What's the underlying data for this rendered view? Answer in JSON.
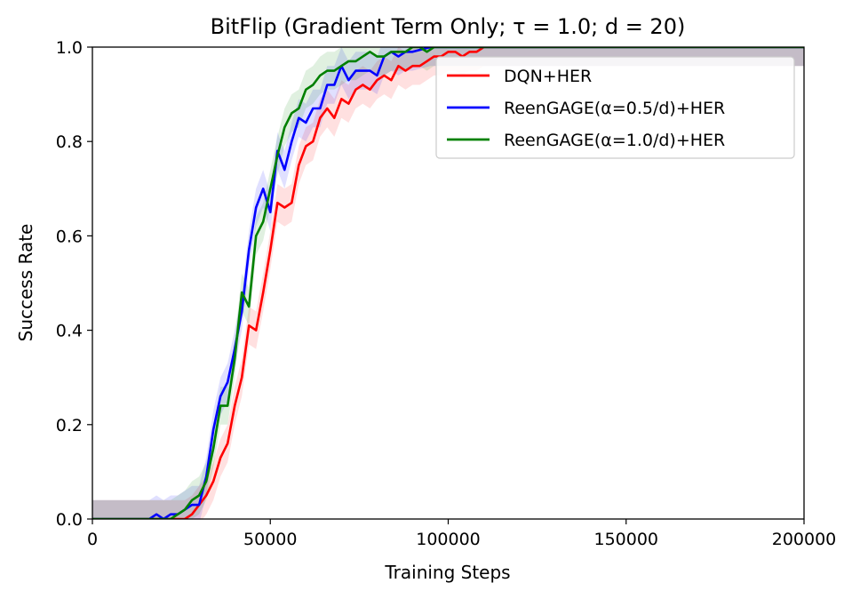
{
  "chart_data": {
    "type": "line",
    "title": "BitFlip (Gradient Term Only; τ = 1.0; d = 20)",
    "xlabel": "Training Steps",
    "ylabel": "Success Rate",
    "xlim": [
      0,
      200000
    ],
    "ylim": [
      0.0,
      1.0
    ],
    "xticks": [
      0,
      50000,
      100000,
      150000,
      200000
    ],
    "xtick_labels": [
      "0",
      "50000",
      "100000",
      "150000",
      "200000"
    ],
    "yticks": [
      0.0,
      0.2,
      0.4,
      0.6,
      0.8,
      1.0
    ],
    "ytick_labels": [
      "0.0",
      "0.2",
      "0.4",
      "0.6",
      "0.8",
      "1.0"
    ],
    "grid": false,
    "legend_position": "top-right",
    "series": [
      {
        "name": "DQN+HER",
        "color": "#ff0000",
        "band": 0.04,
        "x": [
          0,
          16000,
          20000,
          22000,
          24000,
          26000,
          28000,
          30000,
          32000,
          34000,
          36000,
          38000,
          40000,
          42000,
          44000,
          46000,
          48000,
          50000,
          52000,
          54000,
          56000,
          58000,
          60000,
          62000,
          64000,
          66000,
          68000,
          70000,
          72000,
          74000,
          76000,
          78000,
          80000,
          82000,
          84000,
          86000,
          88000,
          90000,
          92000,
          94000,
          96000,
          98000,
          100000,
          102000,
          104000,
          106000,
          108000,
          110000,
          115000,
          120000,
          130000,
          140000,
          150000,
          200000
        ],
        "y": [
          0.0,
          0.0,
          0.0,
          0.0,
          0.0,
          0.0,
          0.01,
          0.03,
          0.05,
          0.08,
          0.13,
          0.16,
          0.24,
          0.3,
          0.41,
          0.4,
          0.48,
          0.57,
          0.67,
          0.66,
          0.67,
          0.75,
          0.79,
          0.8,
          0.85,
          0.87,
          0.85,
          0.89,
          0.88,
          0.91,
          0.92,
          0.91,
          0.93,
          0.94,
          0.93,
          0.96,
          0.95,
          0.96,
          0.96,
          0.97,
          0.98,
          0.98,
          0.99,
          0.99,
          0.98,
          0.99,
          0.99,
          1.0,
          1.0,
          1.0,
          1.0,
          1.0,
          1.0,
          1.0
        ]
      },
      {
        "name": "ReenGAGE(α=0.5/d)+HER",
        "color": "#0000ff",
        "band": 0.04,
        "x": [
          0,
          16000,
          18000,
          20000,
          22000,
          24000,
          26000,
          28000,
          30000,
          32000,
          34000,
          36000,
          38000,
          40000,
          42000,
          44000,
          46000,
          48000,
          50000,
          52000,
          54000,
          56000,
          58000,
          60000,
          62000,
          64000,
          66000,
          68000,
          70000,
          72000,
          74000,
          76000,
          78000,
          80000,
          82000,
          84000,
          86000,
          88000,
          90000,
          95000,
          100000,
          110000,
          120000,
          200000
        ],
        "y": [
          0.0,
          0.0,
          0.01,
          0.0,
          0.01,
          0.01,
          0.02,
          0.03,
          0.03,
          0.09,
          0.19,
          0.26,
          0.29,
          0.36,
          0.44,
          0.57,
          0.66,
          0.7,
          0.65,
          0.78,
          0.74,
          0.8,
          0.85,
          0.84,
          0.87,
          0.87,
          0.92,
          0.92,
          0.96,
          0.93,
          0.95,
          0.95,
          0.95,
          0.94,
          0.98,
          0.99,
          0.98,
          0.99,
          0.99,
          1.0,
          1.0,
          1.0,
          1.0,
          1.0
        ]
      },
      {
        "name": "ReenGAGE(α=1.0/d)+HER",
        "color": "#008000",
        "band": 0.04,
        "x": [
          0,
          20000,
          22000,
          24000,
          26000,
          28000,
          30000,
          32000,
          34000,
          36000,
          38000,
          40000,
          42000,
          44000,
          46000,
          48000,
          50000,
          52000,
          54000,
          56000,
          58000,
          60000,
          62000,
          64000,
          66000,
          68000,
          70000,
          72000,
          74000,
          76000,
          78000,
          80000,
          82000,
          84000,
          86000,
          88000,
          90000,
          92000,
          94000,
          96000,
          100000,
          110000,
          200000
        ],
        "y": [
          0.0,
          0.0,
          0.0,
          0.01,
          0.02,
          0.04,
          0.05,
          0.08,
          0.15,
          0.24,
          0.24,
          0.34,
          0.48,
          0.45,
          0.6,
          0.63,
          0.7,
          0.77,
          0.83,
          0.86,
          0.87,
          0.91,
          0.92,
          0.94,
          0.95,
          0.95,
          0.96,
          0.97,
          0.97,
          0.98,
          0.99,
          0.98,
          0.98,
          0.99,
          0.99,
          0.99,
          1.0,
          1.0,
          0.99,
          1.0,
          1.0,
          1.0,
          1.0
        ]
      }
    ]
  }
}
